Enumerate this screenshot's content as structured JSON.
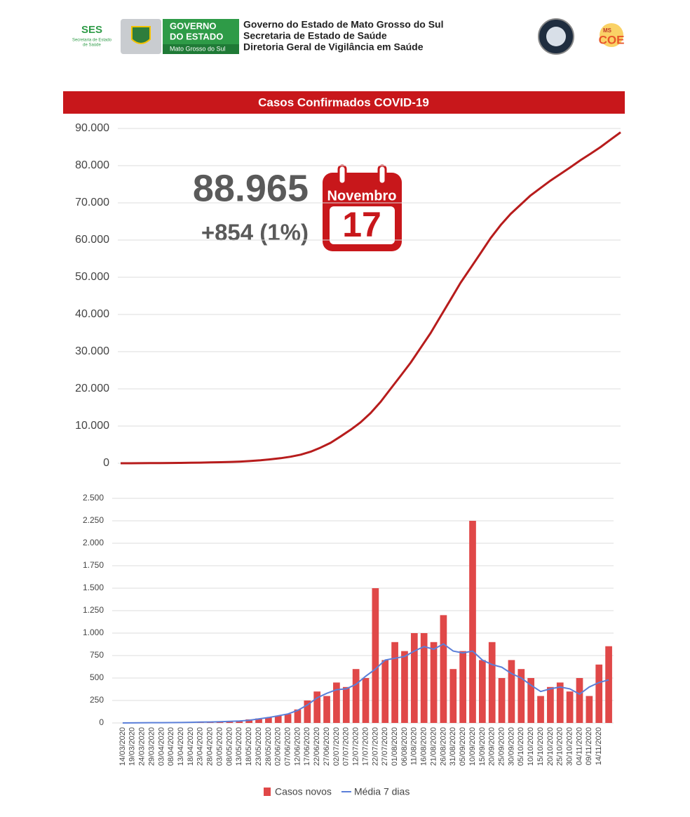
{
  "header": {
    "ses": "SES",
    "ses_sub": [
      "Secretaria de Estado",
      "de Saúde"
    ],
    "gov_box": [
      "GOVERNO",
      "DO ESTADO",
      "Mato Grosso do Sul"
    ],
    "title_lines": [
      "Governo do Estado de Mato Grosso do Sul",
      "Secretaria de Estado de Saúde",
      "Diretoria Geral de Vigilância em Saúde"
    ],
    "coe": "COE",
    "coe_ms": "MS"
  },
  "chart_data": [
    {
      "type": "line",
      "title": "Casos Confirmados COVID-19",
      "color": "#b71c1c",
      "grid": true,
      "headline": "88.965",
      "change": "+854 (1%)",
      "calendar_month": "Novembro",
      "calendar_day": "17",
      "ylim": [
        0,
        90000
      ],
      "yticks": [
        0,
        {
          "value": 10000,
          "label": "10.000"
        },
        {
          "value": 20000,
          "label": "20.000"
        },
        {
          "value": 30000,
          "label": "30.000"
        },
        {
          "value": 40000,
          "label": "40.000"
        },
        {
          "value": 50000,
          "label": "50.000"
        },
        {
          "value": 60000,
          "label": "60.000"
        },
        {
          "value": 70000,
          "label": "70.000"
        },
        {
          "value": 80000,
          "label": "80.000"
        },
        {
          "value": 90000,
          "label": "90.000"
        }
      ],
      "values": [
        0,
        5,
        25,
        45,
        60,
        80,
        100,
        130,
        170,
        220,
        280,
        360,
        460,
        600,
        800,
        1050,
        1350,
        1750,
        2300,
        3100,
        4200,
        5500,
        7200,
        9000,
        11000,
        13500,
        16500,
        20000,
        23500,
        27000,
        31000,
        35000,
        39500,
        44000,
        48500,
        52500,
        56500,
        60500,
        64000,
        67000,
        69500,
        72000,
        74000,
        76000,
        77800,
        79600,
        81500,
        83200,
        85000,
        87000,
        88965
      ]
    },
    {
      "type": "bar",
      "grid": true,
      "legend": "bottom",
      "categories": [
        "14/03/2020",
        "19/03/2020",
        "24/03/2020",
        "29/03/2020",
        "03/04/2020",
        "08/04/2020",
        "13/04/2020",
        "18/04/2020",
        "23/04/2020",
        "28/04/2020",
        "03/05/2020",
        "08/05/2020",
        "13/05/2020",
        "18/05/2020",
        "23/05/2020",
        "28/05/2020",
        "02/06/2020",
        "07/06/2020",
        "12/06/2020",
        "17/06/2020",
        "22/06/2020",
        "27/06/2020",
        "02/07/2020",
        "07/07/2020",
        "12/07/2020",
        "17/07/2020",
        "22/07/2020",
        "27/07/2020",
        "01/08/2020",
        "06/08/2020",
        "11/08/2020",
        "16/08/2020",
        "21/08/2020",
        "26/08/2020",
        "31/08/2020",
        "05/09/2020",
        "10/09/2020",
        "15/09/2020",
        "20/09/2020",
        "25/09/2020",
        "30/09/2020",
        "05/10/2020",
        "10/10/2020",
        "15/10/2020",
        "20/10/2020",
        "25/10/2020",
        "30/10/2020",
        "04/11/2020",
        "09/11/2020",
        "14/11/2020",
        null
      ],
      "ylim": [
        0,
        2500
      ],
      "yticks": [
        0,
        250,
        500,
        750,
        {
          "value": 1000,
          "label": "1.000"
        },
        {
          "value": 1250,
          "label": "1.250"
        },
        {
          "value": 1500,
          "label": "1.500"
        },
        {
          "value": 1750,
          "label": "1.750"
        },
        {
          "value": 2000,
          "label": "2.000"
        },
        {
          "value": 2250,
          "label": "2.250"
        },
        {
          "value": 2500,
          "label": "2.500"
        }
      ],
      "series": [
        {
          "name": "Casos novos",
          "color": "#e04848",
          "type": "bar",
          "values": [
            0,
            1,
            5,
            3,
            4,
            4,
            5,
            8,
            10,
            12,
            15,
            20,
            25,
            40,
            50,
            60,
            80,
            100,
            150,
            250,
            350,
            300,
            450,
            400,
            600,
            500,
            1500,
            700,
            900,
            800,
            1000,
            1000,
            900,
            1200,
            600,
            800,
            2250,
            700,
            900,
            500,
            700,
            600,
            500,
            300,
            400,
            450,
            350,
            500,
            300,
            650,
            854
          ]
        },
        {
          "name": "Média 7 dias",
          "color": "#5b7fd9",
          "type": "line",
          "values": [
            0,
            0.5,
            2,
            3,
            3,
            4,
            5,
            7,
            9,
            11,
            14,
            18,
            22,
            30,
            45,
            60,
            80,
            100,
            140,
            200,
            280,
            330,
            370,
            380,
            430,
            520,
            600,
            700,
            720,
            740,
            800,
            850,
            820,
            880,
            800,
            780,
            800,
            700,
            650,
            620,
            550,
            500,
            420,
            350,
            380,
            400,
            380,
            320,
            400,
            450,
            480
          ]
        }
      ]
    }
  ]
}
